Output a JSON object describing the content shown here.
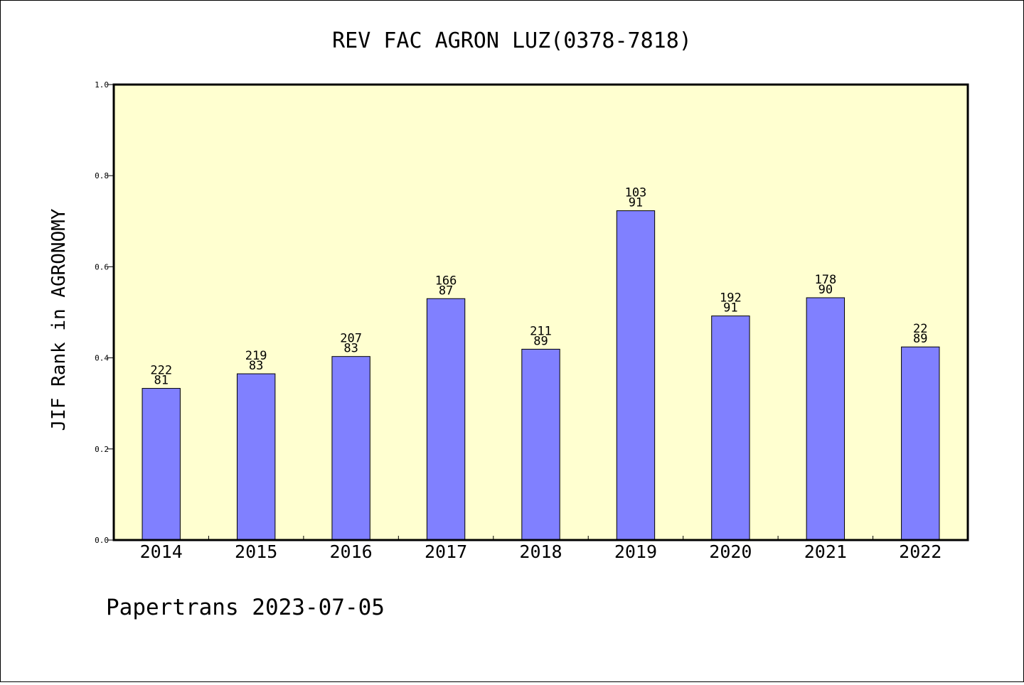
{
  "chart_data": {
    "type": "bar",
    "title": "REV FAC AGRON LUZ(0378-7818)",
    "xlabel": "",
    "ylabel": "JIF Rank in AGRONOMY",
    "categories": [
      "2014",
      "2015",
      "2016",
      "2017",
      "2018",
      "2019",
      "2020",
      "2021",
      "2022"
    ],
    "values": [
      0.333,
      0.365,
      0.403,
      0.53,
      0.419,
      0.723,
      0.492,
      0.532,
      0.424
    ],
    "total_label": [
      "222",
      "219",
      "207",
      "166",
      "211",
      "103",
      "192",
      "178",
      "22"
    ],
    "rank_label": [
      "81",
      "83",
      "83",
      "87",
      "89",
      "91",
      "91",
      "90",
      "89"
    ],
    "ylim": [
      0.0,
      1.0
    ],
    "yticks": [
      "0.0",
      "0.2",
      "0.4",
      "0.6",
      "0.8",
      "1.0"
    ],
    "grid": false,
    "bar_color": "#8080ff",
    "plot_background": "#ffffd0"
  },
  "footer": "Papertrans 2023-07-05"
}
